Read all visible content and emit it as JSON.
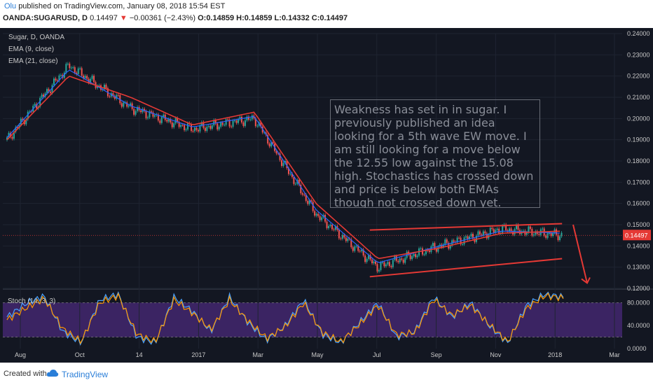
{
  "header": {
    "author": "Olu",
    "published": "published on TradingView.com, January 08, 2018 15:54 EST",
    "symbol": "OANDA:SUGARUSD, D",
    "price": "0.14497",
    "arrow": "▼",
    "change": "−0.00361 (−2.43%)",
    "ohlc": "O:0.14859 H:0.14859 L:0.14332 C:0.14497"
  },
  "legend": {
    "title": "Sugar, D, OANDA",
    "ema9": "EMA (9, close)",
    "ema21": "EMA (21, close)",
    "stoch": "Stoch (14, 3, 3)"
  },
  "annotation": "Weakness has set in in sugar. I previously published an idea looking for a 5th wave EW move. I am still looking for a move below the 12.55 low  against the  15.08 high. Stochastics has crossed down and price is below both EMAs though not crossed down yet.",
  "price_label": "0.14497",
  "footer": {
    "created": "Created with",
    "brand": "TradingView"
  },
  "colors": {
    "background": "#131722",
    "up": "#26a69a",
    "down": "#ef5350",
    "ema9": "#2962ff",
    "ema21": "#e53935",
    "stoch_k": "#4aa3ff",
    "stoch_d": "#ff9800",
    "stoch_band": "#4a2a7a"
  },
  "chart_data": [
    {
      "type": "candlestick",
      "title": "Sugar, D, OANDA",
      "ylim": [
        0.12,
        0.24
      ],
      "y_ticks": [
        "0.24000",
        "0.23000",
        "0.22000",
        "0.21000",
        "0.20000",
        "0.19000",
        "0.18000",
        "0.17000",
        "0.16000",
        "0.15000",
        "0.14000",
        "0.13000",
        "0.12000"
      ],
      "x_ticks": [
        "Aug",
        "Oct",
        "14",
        "2017",
        "Mar",
        "May",
        "Jul",
        "Sep",
        "Nov",
        "2018",
        "Mar"
      ],
      "series": [
        {
          "name": "Close",
          "x": [
            "Aug",
            "Oct",
            "14",
            "2017",
            "Mar",
            "May",
            "Jul",
            "Sep",
            "Nov",
            "2018"
          ],
          "values": [
            0.19,
            0.225,
            0.205,
            0.195,
            0.2,
            0.155,
            0.13,
            0.14,
            0.148,
            0.145
          ]
        },
        {
          "name": "EMA (9, close)",
          "x": [
            "Aug",
            "Oct",
            "14",
            "2017",
            "Mar",
            "May",
            "Jul",
            "Sep",
            "Nov",
            "2018"
          ],
          "values": [
            0.191,
            0.223,
            0.206,
            0.196,
            0.201,
            0.157,
            0.132,
            0.14,
            0.147,
            0.146
          ]
        },
        {
          "name": "EMA (21, close)",
          "x": [
            "Aug",
            "Oct",
            "14",
            "2017",
            "Mar",
            "May",
            "Jul",
            "Sep",
            "Nov",
            "2018"
          ],
          "values": [
            0.19,
            0.22,
            0.21,
            0.197,
            0.203,
            0.16,
            0.134,
            0.139,
            0.146,
            0.147
          ]
        }
      ],
      "trendlines": [
        {
          "from": [
            "Jul",
            0.1255
          ],
          "to": [
            "2018",
            0.134
          ]
        },
        {
          "from": [
            "Jul",
            0.1475
          ],
          "to": [
            "2018",
            0.1505
          ]
        }
      ],
      "current_price": 0.14497
    },
    {
      "type": "line",
      "title": "Stoch (14, 3, 3)",
      "ylim": [
        0,
        100
      ],
      "y_ticks": [
        "80.0000",
        "40.0000",
        "0.0000"
      ],
      "band": [
        20,
        80
      ],
      "series": [
        {
          "name": "%K",
          "values": [
            55,
            78,
            92,
            30,
            10,
            85,
            95,
            20,
            10,
            90,
            65,
            30,
            90,
            45,
            15,
            40,
            85,
            25,
            10,
            45,
            80,
            20,
            30,
            90,
            55,
            80,
            40,
            10,
            75,
            95,
            90
          ]
        },
        {
          "name": "%D",
          "values": [
            50,
            70,
            88,
            35,
            12,
            80,
            92,
            25,
            12,
            85,
            62,
            33,
            85,
            48,
            18,
            38,
            80,
            28,
            12,
            42,
            76,
            24,
            28,
            86,
            58,
            76,
            42,
            12,
            70,
            92,
            88
          ]
        }
      ]
    }
  ]
}
